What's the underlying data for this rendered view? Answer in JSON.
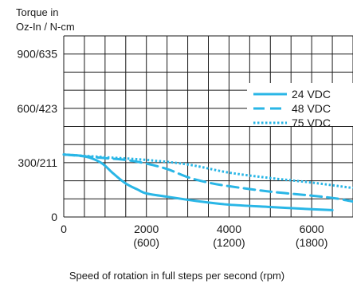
{
  "chart_data": {
    "type": "line",
    "ylabel_lines": [
      "Torque in",
      "Oz-In / N-cm"
    ],
    "xlabel": "Speed of rotation in full steps per second (rpm)",
    "xlim": [
      0,
      7000
    ],
    "ylim": [
      0,
      1000
    ],
    "grid": true,
    "legend_position": "top-right",
    "y_ticks": [
      {
        "value": 0,
        "label": "0"
      },
      {
        "value": 300,
        "label": "300/211"
      },
      {
        "value": 600,
        "label": "600/423"
      },
      {
        "value": 900,
        "label": "900/635"
      }
    ],
    "x_ticks": [
      {
        "value": 0,
        "label": "0",
        "sub": ""
      },
      {
        "value": 2000,
        "label": "2000",
        "sub": "(600)"
      },
      {
        "value": 4000,
        "label": "4000",
        "sub": "(1200)"
      },
      {
        "value": 6000,
        "label": "6000",
        "sub": "(1800)"
      }
    ],
    "series": [
      {
        "name": "24 VDC",
        "style": "solid",
        "color": "#29b6e6",
        "x": [
          0,
          500,
          900,
          1200,
          1500,
          1800,
          2000,
          2500,
          3000,
          3500,
          4000,
          5000,
          6000,
          6500
        ],
        "y": [
          345,
          335,
          300,
          240,
          185,
          150,
          130,
          112,
          95,
          80,
          68,
          55,
          43,
          38
        ]
      },
      {
        "name": "48 VDC",
        "style": "dashed",
        "color": "#29b6e6",
        "x": [
          0,
          1000,
          1500,
          2000,
          2500,
          3000,
          3500,
          4000,
          5000,
          6000,
          6600,
          7000
        ],
        "y": [
          345,
          325,
          315,
          295,
          265,
          220,
          190,
          170,
          140,
          118,
          102,
          85
        ]
      },
      {
        "name": "75 VDC",
        "style": "dotted",
        "color": "#29b6e6",
        "x": [
          0,
          1000,
          2000,
          3000,
          4000,
          5000,
          6000,
          7000
        ],
        "y": [
          345,
          330,
          315,
          290,
          245,
          215,
          190,
          160
        ]
      }
    ]
  }
}
